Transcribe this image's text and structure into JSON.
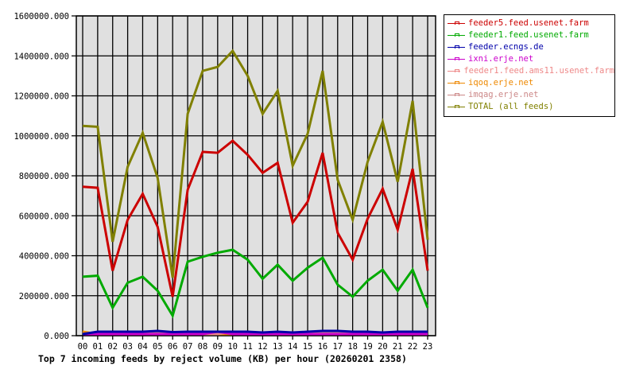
{
  "chart_data": {
    "type": "line",
    "title": "Top 7 incoming feeds by reject volume (KB) per hour (20260201 2358)",
    "xlabel": "",
    "ylabel": "",
    "ylim": [
      0,
      1600000
    ],
    "yticks": [
      "0.000",
      "200000.000",
      "400000.000",
      "600000.000",
      "800000.000",
      "1000000.000",
      "1200000.000",
      "1400000.000",
      "1600000.000"
    ],
    "grid": true,
    "legend_position": "right",
    "x": [
      "00",
      "01",
      "02",
      "03",
      "04",
      "05",
      "06",
      "07",
      "08",
      "09",
      "10",
      "11",
      "12",
      "13",
      "14",
      "15",
      "16",
      "17",
      "18",
      "19",
      "20",
      "21",
      "22",
      "23"
    ],
    "series": [
      {
        "name": "feeder5.feed.usenet.farm",
        "color": "#cc0000",
        "values": [
          745000,
          740000,
          325000,
          580000,
          710000,
          545000,
          195000,
          730000,
          920000,
          915000,
          975000,
          905000,
          815000,
          865000,
          565000,
          670000,
          915000,
          515000,
          380000,
          585000,
          735000,
          530000,
          835000,
          325000
        ]
      },
      {
        "name": "feeder1.feed.usenet.farm",
        "color": "#00aa00",
        "values": [
          295000,
          300000,
          140000,
          265000,
          295000,
          225000,
          100000,
          370000,
          395000,
          415000,
          430000,
          380000,
          285000,
          355000,
          275000,
          340000,
          390000,
          255000,
          195000,
          275000,
          330000,
          225000,
          330000,
          140000
        ]
      },
      {
        "name": "feeder.ecngs.de",
        "color": "#0000aa",
        "values": [
          0,
          12000,
          12000,
          12000,
          12000,
          16000,
          10000,
          12000,
          12000,
          12000,
          12000,
          12000,
          8000,
          12000,
          8000,
          12000,
          16000,
          16000,
          12000,
          12000,
          8000,
          12000,
          12000,
          12000
        ]
      },
      {
        "name": "ixni.erje.net",
        "color": "#cc00cc",
        "values": [
          0,
          0,
          0,
          0,
          0,
          0,
          0,
          0,
          0,
          12000,
          0,
          0,
          0,
          0,
          0,
          0,
          0,
          0,
          0,
          0,
          0,
          0,
          0,
          0
        ]
      },
      {
        "name": "feeder1.feed.ams11.usenet.farm",
        "color": "#ee8888",
        "values": [
          0,
          0,
          0,
          0,
          0,
          0,
          0,
          0,
          0,
          0,
          12000,
          12000,
          0,
          0,
          0,
          0,
          0,
          0,
          0,
          0,
          0,
          0,
          0,
          0
        ]
      },
      {
        "name": "iqoq.erje.net",
        "color": "#ee8800",
        "values": [
          12000,
          0,
          0,
          0,
          0,
          0,
          0,
          0,
          0,
          0,
          0,
          0,
          0,
          0,
          0,
          0,
          0,
          0,
          0,
          0,
          0,
          0,
          0,
          0
        ]
      },
      {
        "name": "imqag.erje.net",
        "color": "#cc8888",
        "values": [
          4000,
          4000,
          4000,
          4000,
          4000,
          4000,
          4000,
          4000,
          4000,
          4000,
          4000,
          4000,
          4000,
          4000,
          4000,
          4000,
          4000,
          4000,
          4000,
          4000,
          4000,
          4000,
          4000,
          4000
        ]
      },
      {
        "name": "TOTAL (all feeds)",
        "color": "#808000",
        "values": [
          1050000,
          1045000,
          470000,
          845000,
          1015000,
          790000,
          290000,
          1110000,
          1325000,
          1345000,
          1425000,
          1300000,
          1110000,
          1225000,
          850000,
          1010000,
          1325000,
          780000,
          580000,
          870000,
          1070000,
          770000,
          1175000,
          480000
        ]
      }
    ]
  }
}
